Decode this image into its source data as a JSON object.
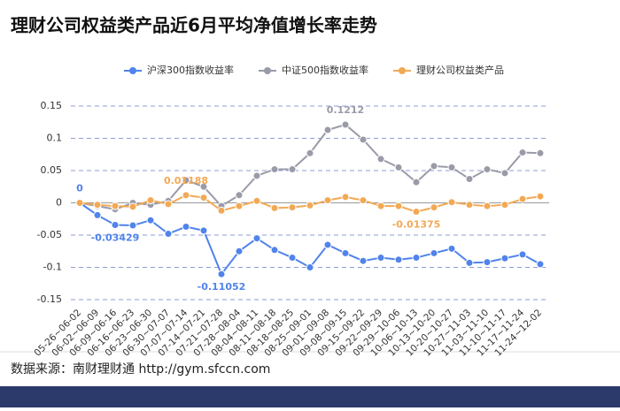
{
  "title": "理财公司权益类产品近6月平均净值增长率走势",
  "source": "数据来源：南财理财通 http://gym.sfccn.com",
  "chart_data": {
    "type": "line",
    "categories": [
      "05-26~06-02",
      "06-02~06-09",
      "06-09~06-16",
      "06-16~06-23",
      "06-23~06-30",
      "06-30~07-07",
      "07-07~07-14",
      "07-14~07-21",
      "07-21~07-28",
      "07-28~08-04",
      "08-04~08-11",
      "08-11~08-18",
      "08-18~08-25",
      "08-25~09-01",
      "09-01~09-08",
      "09-08~09-15",
      "09-15~09-22",
      "09-22~09-29",
      "09-29~10-06",
      "10-06~10-13",
      "10-13~10-20",
      "10-20~10-27",
      "10-27~11-03",
      "11-03~11-10",
      "11-10~11-17",
      "11-17~11-24",
      "11-24~12-02"
    ],
    "series": [
      {
        "name": "沪深300指数收益率",
        "color": "#5083ec",
        "values": [
          0,
          -0.019,
          -0.03429,
          -0.035,
          -0.027,
          -0.048,
          -0.037,
          -0.043,
          -0.11052,
          -0.075,
          -0.055,
          -0.073,
          -0.085,
          -0.1,
          -0.065,
          -0.078,
          -0.09,
          -0.085,
          -0.088,
          -0.085,
          -0.078,
          -0.071,
          -0.093,
          -0.092,
          -0.086,
          -0.08,
          -0.095
        ],
        "value_labels": [
          "0",
          null,
          "-0.03429",
          null,
          null,
          null,
          null,
          null,
          "-0.11052",
          null,
          null,
          null,
          null,
          null,
          null,
          null,
          null,
          null,
          null,
          null,
          null,
          null,
          null,
          null,
          null,
          null,
          null
        ]
      },
      {
        "name": "中证500指数收益率",
        "color": "#9a9ba8",
        "values": [
          0,
          -0.005,
          -0.01,
          0,
          -0.003,
          0.003,
          0.035,
          0.025,
          -0.005,
          0.012,
          0.042,
          0.052,
          0.052,
          0.077,
          0.113,
          0.1212,
          0.098,
          0.068,
          0.055,
          0.032,
          0.057,
          0.055,
          0.037,
          0.052,
          0.046,
          0.078,
          0.077
        ],
        "value_labels": [
          null,
          null,
          null,
          null,
          null,
          null,
          null,
          null,
          null,
          null,
          null,
          null,
          null,
          null,
          null,
          "0.1212",
          null,
          null,
          null,
          null,
          null,
          null,
          null,
          null,
          null,
          null,
          null
        ]
      },
      {
        "name": "理财公司权益类产品",
        "color": "#f2a955",
        "values": [
          0,
          -0.003,
          -0.005,
          -0.006,
          0.004,
          -0.002,
          0.01188,
          0.008,
          -0.012,
          -0.005,
          0.003,
          -0.008,
          -0.007,
          -0.004,
          0.004,
          0.009,
          0.004,
          -0.005,
          -0.005,
          -0.01375,
          -0.007,
          0.001,
          -0.003,
          -0.005,
          -0.003,
          0.006,
          0.01
        ],
        "value_labels": [
          null,
          null,
          null,
          null,
          null,
          null,
          "0.01188",
          null,
          null,
          null,
          null,
          null,
          null,
          null,
          null,
          null,
          null,
          null,
          null,
          "-0.01375",
          null,
          null,
          null,
          null,
          null,
          null,
          null
        ]
      }
    ],
    "ylim": [
      -0.15,
      0.15
    ],
    "yticks": [
      0.15,
      0.1,
      0.05,
      0,
      -0.05,
      -0.1,
      -0.15
    ],
    "grid": true,
    "legend": "top"
  }
}
